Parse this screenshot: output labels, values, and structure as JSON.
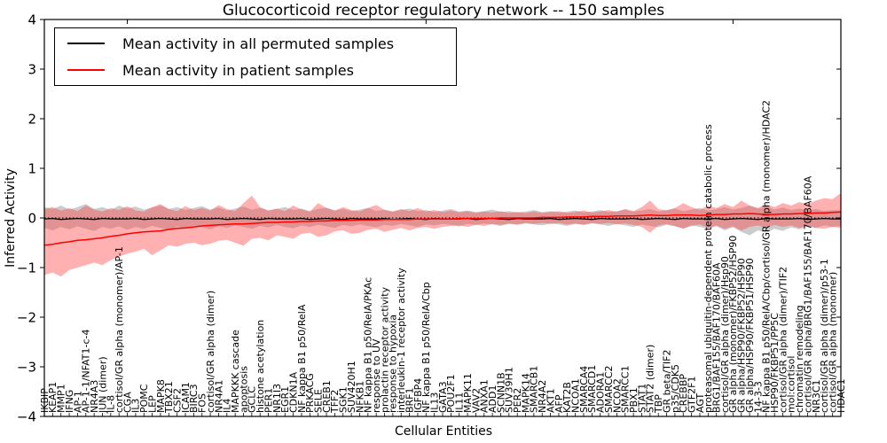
{
  "title": "Glucocorticoid receptor regulatory network -- 150 samples",
  "legend": {
    "items": [
      {
        "label": "Mean activity in all permuted samples",
        "color": "#000000"
      },
      {
        "label": "Mean activity in patient samples",
        "color": "#ff0000"
      }
    ]
  },
  "axes": {
    "ylabel": "Inferred Activity",
    "xlabel": "Cellular Entities",
    "yticks": [
      "4",
      "3",
      "2",
      "1",
      "0",
      "−1",
      "−2",
      "−3",
      "−4"
    ],
    "ylim": [
      -4,
      4
    ]
  },
  "colors": {
    "permuted_line": "#000000",
    "patient_line": "#ff0000",
    "permuted_band": "#999999",
    "patient_band": "#ff4444",
    "frame": "#000000"
  },
  "chart_data": {
    "type": "line",
    "title": "Glucocorticoid receptor regulatory network -- 150 samples",
    "xlabel": "Cellular Entities",
    "ylabel": "Inferred Activity",
    "ylim": [
      -4,
      4
    ],
    "grid": false,
    "legend_position": "upper left",
    "zero_line": true,
    "xtick_major_indices": [
      10,
      46,
      83
    ],
    "categories": [
      "IKBIP",
      "KEAP1",
      "MMP1",
      "IFNG",
      "AP-1",
      "AP-1-1/NFAT1-c-4",
      "NR4A3",
      "JUN (dimer)",
      "IL-8",
      "cortisol/GR alpha (monomer)/AP-1",
      "CGA",
      "IL3",
      "POMC",
      "LEP",
      "MAPK8",
      "TBX21",
      "CSF2",
      "ICAM1",
      "BIRC3",
      "FOS",
      "cortisol/GR alpha (dimer)",
      "NR4A1",
      "IL4",
      "MAPKKK cascade",
      "apoptosis",
      "GCLC",
      "histone acetylation",
      "PER1",
      "NR1I3",
      "EGR1",
      "CDKN1A",
      "NF kappa B1 p50/RelA",
      "PRKACG",
      "SELE",
      "CREB1",
      "TFF2",
      "SGK1",
      "SUV420H1",
      "NFKB1",
      "NF kappa B1 p50/RelA/PKAc",
      "response to UV",
      "prolactin receptor activity",
      "response to hypoxia",
      "interleukin-1 receptor activity",
      "BRF1",
      "IGFBP4",
      "NF kappa B1 p50/RelA/Cbp",
      "IL13",
      "GATA3",
      "POU2F1",
      "IL11",
      "MAPK11",
      "VAV2",
      "ANXA1",
      "ADD1",
      "SCNN1B",
      "SUV39H1",
      "PER2",
      "MAPK14",
      "SMARCB1",
      "NR4A2",
      "AKT1",
      "AFP",
      "KAT2B",
      "NCOA1",
      "SMARCA4",
      "SMARCD1",
      "ADORA1",
      "SMARCC2",
      "NCOA2",
      "SMARCC1",
      "PBX1",
      "STAT1",
      "STAT2 (dimer)",
      "TBP",
      "GR beta/TIF2",
      "p35/CDK5",
      "CREBBP",
      "GTF2F1",
      "AGT",
      "proteasomal ubiquitin-dependent protein catabolic process",
      "BRG1/BAF155/BAF170/BAF60A",
      "cortisol/GR alpha (dimer)/Hsp90",
      "GR alpha (monomer)/FKBP52/HSP90",
      "GR alpha/HSP90/FKBP52/HSP90",
      "GR alpha/HSP90/FKBP51/HSP90",
      "14-3-3",
      "NF kappa B1 p50/RelA/Cbp/cortisol/GR alpha (monomer)/HDAC2",
      "HSP90/FKBP51/PP5C",
      "cortisol/GR alpha (dimer)/TIF2",
      "mol:cortisol",
      "chromatin remodeling",
      "cortisol/GR alpha/BRG1/BAF155/BAF170/BAF60A",
      "NR3C1",
      "cortisol/GR alpha (dimer)/p53-1",
      "cortisol/GR alpha (monomer)",
      "HDAC1"
    ],
    "series": [
      {
        "name": "Mean activity in all permuted samples",
        "color": "#000000",
        "band_color": "#999999",
        "values": [
          -0.02,
          -0.01,
          -0.03,
          -0.02,
          -0.01,
          -0.02,
          -0.03,
          -0.01,
          -0.02,
          -0.02,
          -0.02,
          -0.01,
          -0.03,
          -0.02,
          -0.01,
          -0.02,
          -0.03,
          -0.01,
          -0.02,
          -0.02,
          -0.02,
          -0.01,
          -0.03,
          -0.02,
          -0.01,
          -0.02,
          -0.03,
          -0.01,
          -0.02,
          -0.02,
          -0.02,
          -0.01,
          -0.03,
          -0.02,
          -0.01,
          -0.02,
          -0.03,
          -0.01,
          -0.02,
          -0.02,
          -0.02,
          -0.01,
          -0.03,
          -0.02,
          -0.01,
          -0.02,
          -0.03,
          -0.01,
          -0.02,
          -0.02,
          -0.02,
          -0.01,
          -0.03,
          -0.02,
          -0.01,
          -0.02,
          -0.03,
          -0.01,
          -0.02,
          -0.02,
          -0.02,
          -0.01,
          -0.03,
          -0.02,
          -0.01,
          -0.02,
          -0.03,
          -0.01,
          -0.02,
          -0.02,
          -0.02,
          -0.01,
          -0.03,
          -0.02,
          -0.01,
          -0.02,
          -0.03,
          -0.01,
          -0.02,
          -0.02,
          -0.02,
          -0.01,
          -0.03,
          -0.02,
          -0.01,
          -0.02,
          -0.03,
          -0.01,
          -0.02,
          -0.02,
          -0.02,
          -0.01,
          -0.03,
          -0.02,
          -0.01,
          -0.02,
          -0.02
        ],
        "band_upper": [
          0.22,
          0.18,
          0.25,
          0.17,
          0.22,
          0.28,
          0.18,
          0.22,
          0.16,
          0.25,
          0.19,
          0.23,
          0.17,
          0.21,
          0.25,
          0.18,
          0.22,
          0.16,
          0.2,
          0.24,
          0.17,
          0.21,
          0.15,
          0.19,
          0.23,
          0.17,
          0.2,
          0.15,
          0.18,
          0.22,
          0.16,
          0.19,
          0.14,
          0.18,
          0.21,
          0.15,
          0.18,
          0.14,
          0.17,
          0.2,
          0.14,
          0.17,
          0.13,
          0.16,
          0.19,
          0.14,
          0.16,
          0.12,
          0.15,
          0.18,
          0.13,
          0.15,
          0.12,
          0.14,
          0.17,
          0.12,
          0.14,
          0.11,
          0.13,
          0.16,
          0.12,
          0.14,
          0.11,
          0.13,
          0.15,
          0.11,
          0.13,
          0.16,
          0.12,
          0.14,
          0.17,
          0.13,
          0.15,
          0.18,
          0.13,
          0.16,
          0.19,
          0.14,
          0.17,
          0.2,
          0.15,
          0.18,
          0.22,
          0.17,
          0.2,
          0.25,
          0.19,
          0.23,
          0.17,
          0.21,
          0.16,
          0.19,
          0.15,
          0.18,
          0.14,
          0.16,
          0.15
        ],
        "band_lower": [
          -0.2,
          -0.25,
          -0.18,
          -0.23,
          -0.17,
          -0.22,
          -0.26,
          -0.18,
          -0.22,
          -0.17,
          -0.24,
          -0.18,
          -0.22,
          -0.16,
          -0.2,
          -0.24,
          -0.17,
          -0.21,
          -0.15,
          -0.19,
          -0.23,
          -0.16,
          -0.2,
          -0.15,
          -0.18,
          -0.22,
          -0.16,
          -0.19,
          -0.14,
          -0.18,
          -0.21,
          -0.15,
          -0.18,
          -0.14,
          -0.17,
          -0.2,
          -0.14,
          -0.17,
          -0.13,
          -0.16,
          -0.19,
          -0.14,
          -0.16,
          -0.12,
          -0.15,
          -0.18,
          -0.13,
          -0.15,
          -0.12,
          -0.14,
          -0.17,
          -0.12,
          -0.14,
          -0.11,
          -0.13,
          -0.16,
          -0.12,
          -0.14,
          -0.11,
          -0.13,
          -0.15,
          -0.11,
          -0.13,
          -0.16,
          -0.12,
          -0.14,
          -0.11,
          -0.13,
          -0.16,
          -0.12,
          -0.15,
          -0.18,
          -0.13,
          -0.16,
          -0.19,
          -0.14,
          -0.17,
          -0.21,
          -0.15,
          -0.18,
          -0.22,
          -0.17,
          -0.25,
          -0.19,
          -0.28,
          -0.35,
          -0.25,
          -0.3,
          -0.22,
          -0.26,
          -0.19,
          -0.23,
          -0.17,
          -0.2,
          -0.15,
          -0.18,
          -0.16
        ]
      },
      {
        "name": "Mean activity in patient samples",
        "color": "#ff0000",
        "band_color": "#ff4444",
        "values": [
          -0.55,
          -0.53,
          -0.5,
          -0.48,
          -0.45,
          -0.44,
          -0.42,
          -0.4,
          -0.37,
          -0.35,
          -0.32,
          -0.3,
          -0.28,
          -0.27,
          -0.26,
          -0.23,
          -0.21,
          -0.2,
          -0.18,
          -0.16,
          -0.15,
          -0.14,
          -0.13,
          -0.12,
          -0.12,
          -0.11,
          -0.1,
          -0.09,
          -0.09,
          -0.08,
          -0.08,
          -0.07,
          -0.07,
          -0.06,
          -0.06,
          -0.05,
          -0.05,
          -0.05,
          -0.04,
          -0.04,
          -0.04,
          -0.03,
          -0.03,
          -0.03,
          -0.03,
          -0.02,
          -0.02,
          -0.02,
          -0.02,
          -0.02,
          -0.01,
          -0.01,
          -0.01,
          -0.01,
          -0.01,
          0.0,
          0.0,
          0.0,
          0.0,
          0.0,
          0.01,
          0.01,
          0.01,
          0.02,
          0.02,
          0.02,
          0.03,
          0.03,
          0.03,
          0.04,
          0.04,
          0.04,
          0.05,
          0.06,
          0.05,
          0.05,
          0.06,
          0.06,
          0.06,
          0.05,
          0.06,
          0.07,
          0.07,
          0.08,
          0.08,
          0.09,
          0.08,
          0.07,
          0.07,
          0.08,
          0.08,
          0.09,
          0.09,
          0.1,
          0.1,
          0.11,
          0.12
        ],
        "band_upper": [
          0.18,
          0.22,
          0.15,
          0.2,
          0.14,
          0.25,
          0.17,
          0.13,
          0.2,
          0.16,
          0.24,
          0.15,
          0.13,
          0.22,
          0.28,
          0.18,
          0.14,
          0.24,
          0.16,
          0.2,
          0.15,
          0.26,
          0.18,
          0.14,
          0.3,
          0.45,
          0.22,
          0.15,
          0.19,
          0.14,
          0.25,
          0.17,
          0.13,
          0.3,
          0.2,
          0.15,
          0.22,
          0.16,
          0.13,
          0.2,
          0.26,
          0.16,
          0.13,
          0.18,
          0.14,
          0.2,
          0.13,
          0.16,
          0.12,
          0.15,
          0.11,
          0.14,
          0.1,
          0.13,
          0.11,
          0.14,
          0.1,
          0.12,
          0.1,
          0.13,
          0.1,
          0.12,
          0.14,
          0.1,
          0.12,
          0.15,
          0.11,
          0.13,
          0.16,
          0.12,
          0.18,
          0.14,
          0.22,
          0.35,
          0.18,
          0.15,
          0.2,
          0.3,
          0.22,
          0.16,
          0.25,
          0.2,
          0.28,
          0.22,
          0.35,
          0.25,
          0.2,
          0.28,
          0.22,
          0.3,
          0.25,
          0.32,
          0.28,
          0.35,
          0.4,
          0.38,
          0.5
        ],
        "band_lower": [
          -1.15,
          -1.1,
          -1.18,
          -1.05,
          -1.0,
          -0.95,
          -0.9,
          -0.95,
          -0.85,
          -0.78,
          -0.72,
          -0.68,
          -0.62,
          -0.75,
          -0.65,
          -0.55,
          -0.58,
          -0.52,
          -0.5,
          -0.55,
          -0.52,
          -0.46,
          -0.44,
          -0.5,
          -0.56,
          -0.42,
          -0.4,
          -0.45,
          -0.35,
          -0.38,
          -0.42,
          -0.32,
          -0.3,
          -0.38,
          -0.35,
          -0.27,
          -0.25,
          -0.32,
          -0.3,
          -0.24,
          -0.22,
          -0.28,
          -0.24,
          -0.2,
          -0.25,
          -0.2,
          -0.18,
          -0.22,
          -0.18,
          -0.16,
          -0.15,
          -0.18,
          -0.14,
          -0.16,
          -0.12,
          -0.14,
          -0.11,
          -0.13,
          -0.1,
          -0.12,
          -0.1,
          -0.12,
          -0.1,
          -0.13,
          -0.11,
          -0.14,
          -0.1,
          -0.12,
          -0.1,
          -0.13,
          -0.11,
          -0.14,
          -0.18,
          -0.3,
          -0.15,
          -0.12,
          -0.16,
          -0.22,
          -0.16,
          -0.13,
          -0.2,
          -0.15,
          -0.22,
          -0.17,
          -0.25,
          -0.18,
          -0.15,
          -0.2,
          -0.14,
          -0.18,
          -0.15,
          -0.2,
          -0.16,
          -0.2,
          -0.22,
          -0.18,
          -0.2
        ]
      }
    ]
  }
}
